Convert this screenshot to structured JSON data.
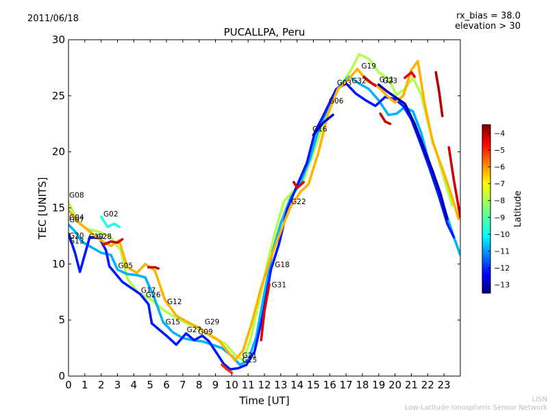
{
  "header": {
    "date": "2011/06/18",
    "rx_bias": "rx_bias = 38.0",
    "elevation": "elevation > 30"
  },
  "footer": {
    "line1": "LISN",
    "line2": "Low-Latitude Ionospheric Sensor Network"
  },
  "chart_data": {
    "type": "scatter",
    "title": "PUCALLPA, Peru",
    "xlabel": "Time [UT]",
    "ylabel": "TEC [UNITS]",
    "xlim": [
      0,
      24
    ],
    "ylim": [
      0,
      30
    ],
    "xticks": [
      0,
      1,
      2,
      3,
      4,
      5,
      6,
      7,
      8,
      9,
      10,
      11,
      12,
      13,
      14,
      15,
      16,
      17,
      18,
      19,
      20,
      21,
      22,
      23
    ],
    "yticks": [
      0,
      5,
      10,
      15,
      20,
      25,
      30
    ],
    "colorbar": {
      "label": "Latitude",
      "range": [
        -13.5,
        -3.5
      ],
      "ticks": [
        -4,
        -5,
        -6,
        -7,
        -8,
        -9,
        -10,
        -11,
        -12,
        -13
      ]
    },
    "prn_labels": [
      {
        "label": "G08",
        "x": 0.0,
        "y": 15.8
      },
      {
        "label": "G04",
        "x": 0.0,
        "y": 13.8
      },
      {
        "label": "G07",
        "x": 0.0,
        "y": 13.6
      },
      {
        "label": "G20",
        "x": 0.0,
        "y": 12.2
      },
      {
        "label": "G13",
        "x": 0.0,
        "y": 11.7
      },
      {
        "label": "G02",
        "x": 2.1,
        "y": 14.1
      },
      {
        "label": "G10",
        "x": 1.2,
        "y": 12.1
      },
      {
        "label": "G28",
        "x": 1.7,
        "y": 12.1
      },
      {
        "label": "G05",
        "x": 3.0,
        "y": 9.5
      },
      {
        "label": "G17",
        "x": 4.4,
        "y": 7.3
      },
      {
        "label": "G26",
        "x": 4.7,
        "y": 6.9
      },
      {
        "label": "G12",
        "x": 6.0,
        "y": 6.3
      },
      {
        "label": "G15",
        "x": 5.9,
        "y": 4.5
      },
      {
        "label": "G27",
        "x": 7.2,
        "y": 3.8
      },
      {
        "label": "G09",
        "x": 7.9,
        "y": 3.6
      },
      {
        "label": "G29",
        "x": 8.3,
        "y": 4.5
      },
      {
        "label": "G21",
        "x": 10.6,
        "y": 1.5
      },
      {
        "label": "G25",
        "x": 10.6,
        "y": 1.1
      },
      {
        "label": "G31",
        "x": 12.4,
        "y": 7.8
      },
      {
        "label": "G18",
        "x": 12.6,
        "y": 9.6
      },
      {
        "label": "G22",
        "x": 13.6,
        "y": 15.2
      },
      {
        "label": "G16",
        "x": 14.9,
        "y": 21.7
      },
      {
        "label": "G06",
        "x": 15.9,
        "y": 24.2
      },
      {
        "label": "G03",
        "x": 16.4,
        "y": 25.8
      },
      {
        "label": "G32",
        "x": 17.3,
        "y": 26.0
      },
      {
        "label": "G19",
        "x": 17.9,
        "y": 27.3
      },
      {
        "label": "G23",
        "x": 19.2,
        "y": 26.0
      },
      {
        "label": "G11",
        "x": 19.0,
        "y": 26.1
      }
    ],
    "series": [
      {
        "name": "A",
        "lat": -8.0,
        "points": [
          [
            0,
            15.5
          ],
          [
            0.6,
            13.7
          ],
          [
            1.2,
            13.1
          ],
          [
            1.8,
            12.9
          ],
          [
            2.5,
            12.5
          ],
          [
            3.2,
            11.2
          ],
          [
            3.6,
            8.7
          ],
          [
            4.3,
            7.4
          ],
          [
            5.0,
            6.9
          ],
          [
            5.8,
            5.9
          ],
          [
            6.6,
            5.2
          ],
          [
            7.4,
            4.6
          ],
          [
            8.2,
            4.0
          ],
          [
            9.0,
            3.3
          ],
          [
            9.6,
            2.9
          ],
          [
            10.2,
            1.9
          ],
          [
            10.7,
            1.4
          ],
          [
            11.2,
            3.6
          ],
          [
            11.7,
            6.8
          ],
          [
            12.2,
            10.2
          ],
          [
            12.7,
            13.1
          ],
          [
            13.2,
            15.6
          ],
          [
            13.7,
            16.4
          ],
          [
            14.3,
            17.1
          ],
          [
            14.9,
            19.5
          ],
          [
            15.5,
            22.1
          ],
          [
            16.1,
            24.4
          ],
          [
            16.7,
            26.0
          ],
          [
            17.3,
            27.3
          ],
          [
            17.8,
            28.7
          ],
          [
            18.4,
            28.3
          ],
          [
            19.0,
            27.1
          ],
          [
            19.6,
            26.5
          ],
          [
            20.1,
            25.1
          ],
          [
            20.6,
            25.6
          ],
          [
            21.1,
            26.6
          ],
          [
            21.6,
            25.1
          ],
          [
            22.1,
            22.1
          ],
          [
            22.6,
            19.6
          ],
          [
            23.1,
            17.1
          ],
          [
            23.5,
            15.2
          ]
        ]
      },
      {
        "name": "B",
        "lat": -10.5,
        "points": [
          [
            0,
            13.5
          ],
          [
            0.4,
            12.9
          ],
          [
            0.8,
            12.0
          ],
          [
            1.4,
            11.5
          ],
          [
            2.0,
            11.0
          ],
          [
            2.6,
            10.8
          ],
          [
            3.0,
            9.5
          ],
          [
            3.6,
            9.1
          ],
          [
            4.2,
            9.0
          ],
          [
            4.7,
            8.8
          ],
          [
            5.2,
            7.2
          ],
          [
            5.8,
            4.8
          ],
          [
            6.4,
            3.9
          ],
          [
            7.0,
            3.4
          ],
          [
            7.6,
            3.2
          ],
          [
            8.2,
            3.1
          ],
          [
            8.8,
            2.8
          ],
          [
            9.4,
            2.5
          ],
          [
            10.0,
            1.8
          ],
          [
            10.5,
            1.0
          ],
          [
            11.0,
            1.4
          ],
          [
            11.5,
            3.5
          ],
          [
            12.0,
            7.4
          ],
          [
            12.5,
            11.1
          ],
          [
            13.0,
            13.6
          ],
          [
            13.6,
            15.9
          ],
          [
            14.2,
            17.2
          ],
          [
            14.8,
            19.4
          ],
          [
            15.4,
            22.4
          ],
          [
            16.0,
            24.1
          ],
          [
            16.6,
            25.9
          ],
          [
            17.2,
            26.7
          ],
          [
            17.8,
            26.1
          ],
          [
            18.4,
            25.6
          ],
          [
            19.0,
            24.6
          ],
          [
            19.6,
            23.3
          ],
          [
            20.1,
            23.4
          ],
          [
            20.6,
            24.0
          ],
          [
            21.1,
            23.6
          ],
          [
            21.6,
            21.7
          ],
          [
            22.1,
            19.0
          ],
          [
            22.7,
            16.4
          ],
          [
            23.2,
            14.2
          ],
          [
            23.6,
            12.4
          ],
          [
            24.0,
            10.8
          ]
        ]
      },
      {
        "name": "C",
        "lat": -12.0,
        "points": [
          [
            0,
            12.7
          ],
          [
            0.4,
            11.0
          ],
          [
            0.7,
            9.3
          ],
          [
            1.3,
            12.4
          ],
          [
            1.9,
            12.3
          ],
          [
            2.3,
            11.2
          ],
          [
            2.5,
            9.8
          ],
          [
            3.3,
            8.4
          ],
          [
            3.8,
            7.9
          ],
          [
            4.4,
            7.3
          ],
          [
            4.9,
            6.4
          ],
          [
            5.1,
            4.7
          ],
          [
            6.0,
            3.6
          ],
          [
            6.6,
            2.8
          ],
          [
            7.2,
            3.8
          ],
          [
            7.7,
            3.2
          ],
          [
            8.2,
            3.6
          ],
          [
            8.6,
            3.1
          ],
          [
            9.1,
            2.0
          ],
          [
            9.5,
            1.1
          ],
          [
            9.9,
            0.6
          ],
          [
            10.4,
            0.7
          ],
          [
            10.9,
            1.0
          ],
          [
            11.4,
            2.2
          ],
          [
            11.9,
            5.4
          ],
          [
            12.4,
            9.5
          ],
          [
            12.9,
            11.8
          ],
          [
            13.4,
            14.9
          ],
          [
            14.0,
            17.0
          ],
          [
            14.6,
            19.0
          ],
          [
            15.1,
            21.8
          ],
          [
            15.6,
            23.2
          ],
          [
            16.0,
            24.4
          ],
          [
            16.4,
            25.6
          ],
          [
            17.0,
            26.1
          ],
          [
            17.6,
            25.2
          ],
          [
            18.2,
            24.6
          ],
          [
            18.8,
            24.1
          ],
          [
            19.4,
            24.9
          ],
          [
            20.0,
            24.7
          ],
          [
            20.5,
            24.1
          ],
          [
            21.0,
            22.9
          ],
          [
            21.5,
            21.0
          ],
          [
            22.1,
            18.6
          ],
          [
            22.7,
            16.0
          ],
          [
            23.2,
            13.6
          ],
          [
            23.6,
            12.4
          ]
        ]
      },
      {
        "name": "D",
        "lat": -6.5,
        "points": [
          [
            0,
            14.8
          ],
          [
            0.7,
            13.6
          ],
          [
            1.2,
            13.0
          ],
          [
            2.0,
            12.1
          ],
          [
            2.6,
            11.6
          ],
          [
            3.1,
            12.1
          ],
          [
            3.6,
            9.7
          ],
          [
            4.2,
            9.2
          ],
          [
            4.7,
            10.0
          ],
          [
            5.3,
            9.4
          ],
          [
            5.9,
            6.8
          ],
          [
            6.6,
            5.4
          ],
          [
            7.3,
            4.8
          ],
          [
            8.0,
            4.3
          ],
          [
            8.6,
            3.7
          ],
          [
            9.2,
            3.2
          ],
          [
            9.7,
            2.3
          ],
          [
            10.2,
            1.4
          ],
          [
            10.7,
            2.3
          ],
          [
            11.2,
            4.6
          ],
          [
            11.8,
            7.9
          ],
          [
            12.4,
            10.6
          ],
          [
            13.0,
            12.9
          ],
          [
            13.6,
            15.1
          ],
          [
            14.2,
            16.4
          ],
          [
            14.7,
            17.1
          ],
          [
            15.3,
            19.9
          ],
          [
            15.9,
            23.4
          ],
          [
            16.5,
            25.6
          ],
          [
            17.1,
            26.4
          ],
          [
            17.7,
            27.4
          ],
          [
            18.3,
            26.3
          ],
          [
            18.9,
            25.9
          ],
          [
            19.5,
            25.0
          ],
          [
            20.0,
            24.4
          ],
          [
            20.5,
            25.0
          ],
          [
            21.0,
            27.3
          ],
          [
            21.4,
            28.1
          ],
          [
            21.8,
            24.4
          ],
          [
            22.3,
            20.9
          ],
          [
            22.9,
            18.5
          ],
          [
            23.4,
            16.4
          ],
          [
            23.9,
            14.0
          ]
        ]
      },
      {
        "name": "E",
        "lat": -4.3,
        "points": [
          [
            2.1,
            11.7
          ],
          [
            2.6,
            12.0
          ],
          [
            3.0,
            11.9
          ],
          [
            3.3,
            12.2
          ]
        ]
      },
      {
        "name": "F",
        "lat": -4.2,
        "points": [
          [
            4.9,
            9.7
          ],
          [
            5.3,
            9.7
          ],
          [
            5.5,
            9.6
          ]
        ]
      },
      {
        "name": "G",
        "lat": -5.2,
        "points": [
          [
            9.4,
            1.0
          ],
          [
            9.7,
            0.6
          ],
          [
            10.0,
            0.3
          ]
        ]
      },
      {
        "name": "H",
        "lat": -4.5,
        "points": [
          [
            11.8,
            3.2
          ],
          [
            12.0,
            5.8
          ],
          [
            12.3,
            8.2
          ]
        ]
      },
      {
        "name": "I",
        "lat": -4.4,
        "points": [
          [
            13.8,
            17.3
          ],
          [
            14.0,
            16.8
          ],
          [
            14.4,
            17.3
          ]
        ]
      },
      {
        "name": "J",
        "lat": -4.3,
        "points": [
          [
            18.1,
            26.7
          ],
          [
            18.5,
            26.2
          ],
          [
            18.8,
            25.9
          ]
        ]
      },
      {
        "name": "K",
        "lat": -4.2,
        "points": [
          [
            19.1,
            23.4
          ],
          [
            19.4,
            22.7
          ],
          [
            19.7,
            22.5
          ]
        ]
      },
      {
        "name": "L",
        "lat": -4.6,
        "points": [
          [
            20.6,
            26.6
          ],
          [
            21.0,
            27.1
          ],
          [
            21.2,
            26.7
          ]
        ]
      },
      {
        "name": "M",
        "lat": -4.0,
        "points": [
          [
            22.5,
            27.1
          ],
          [
            22.7,
            25.4
          ],
          [
            22.9,
            23.2
          ]
        ]
      },
      {
        "name": "N",
        "lat": -4.3,
        "points": [
          [
            23.3,
            20.4
          ],
          [
            23.6,
            17.5
          ],
          [
            24.0,
            14.2
          ]
        ]
      },
      {
        "name": "O",
        "lat": -9.5,
        "points": [
          [
            2.0,
            14.2
          ],
          [
            2.4,
            13.3
          ],
          [
            2.8,
            13.6
          ],
          [
            3.1,
            13.3
          ]
        ]
      },
      {
        "name": "P",
        "lat": -12.5,
        "points": [
          [
            15.0,
            21.5
          ],
          [
            15.6,
            22.6
          ],
          [
            16.2,
            23.3
          ]
        ]
      },
      {
        "name": "Q",
        "lat": -13.0,
        "points": [
          [
            19.0,
            26.0
          ],
          [
            19.5,
            25.4
          ],
          [
            20.0,
            24.9
          ],
          [
            20.6,
            24.3
          ],
          [
            21.2,
            22.5
          ],
          [
            21.7,
            20.6
          ],
          [
            22.3,
            18.3
          ],
          [
            22.8,
            16.2
          ],
          [
            23.2,
            14.0
          ]
        ]
      }
    ]
  }
}
